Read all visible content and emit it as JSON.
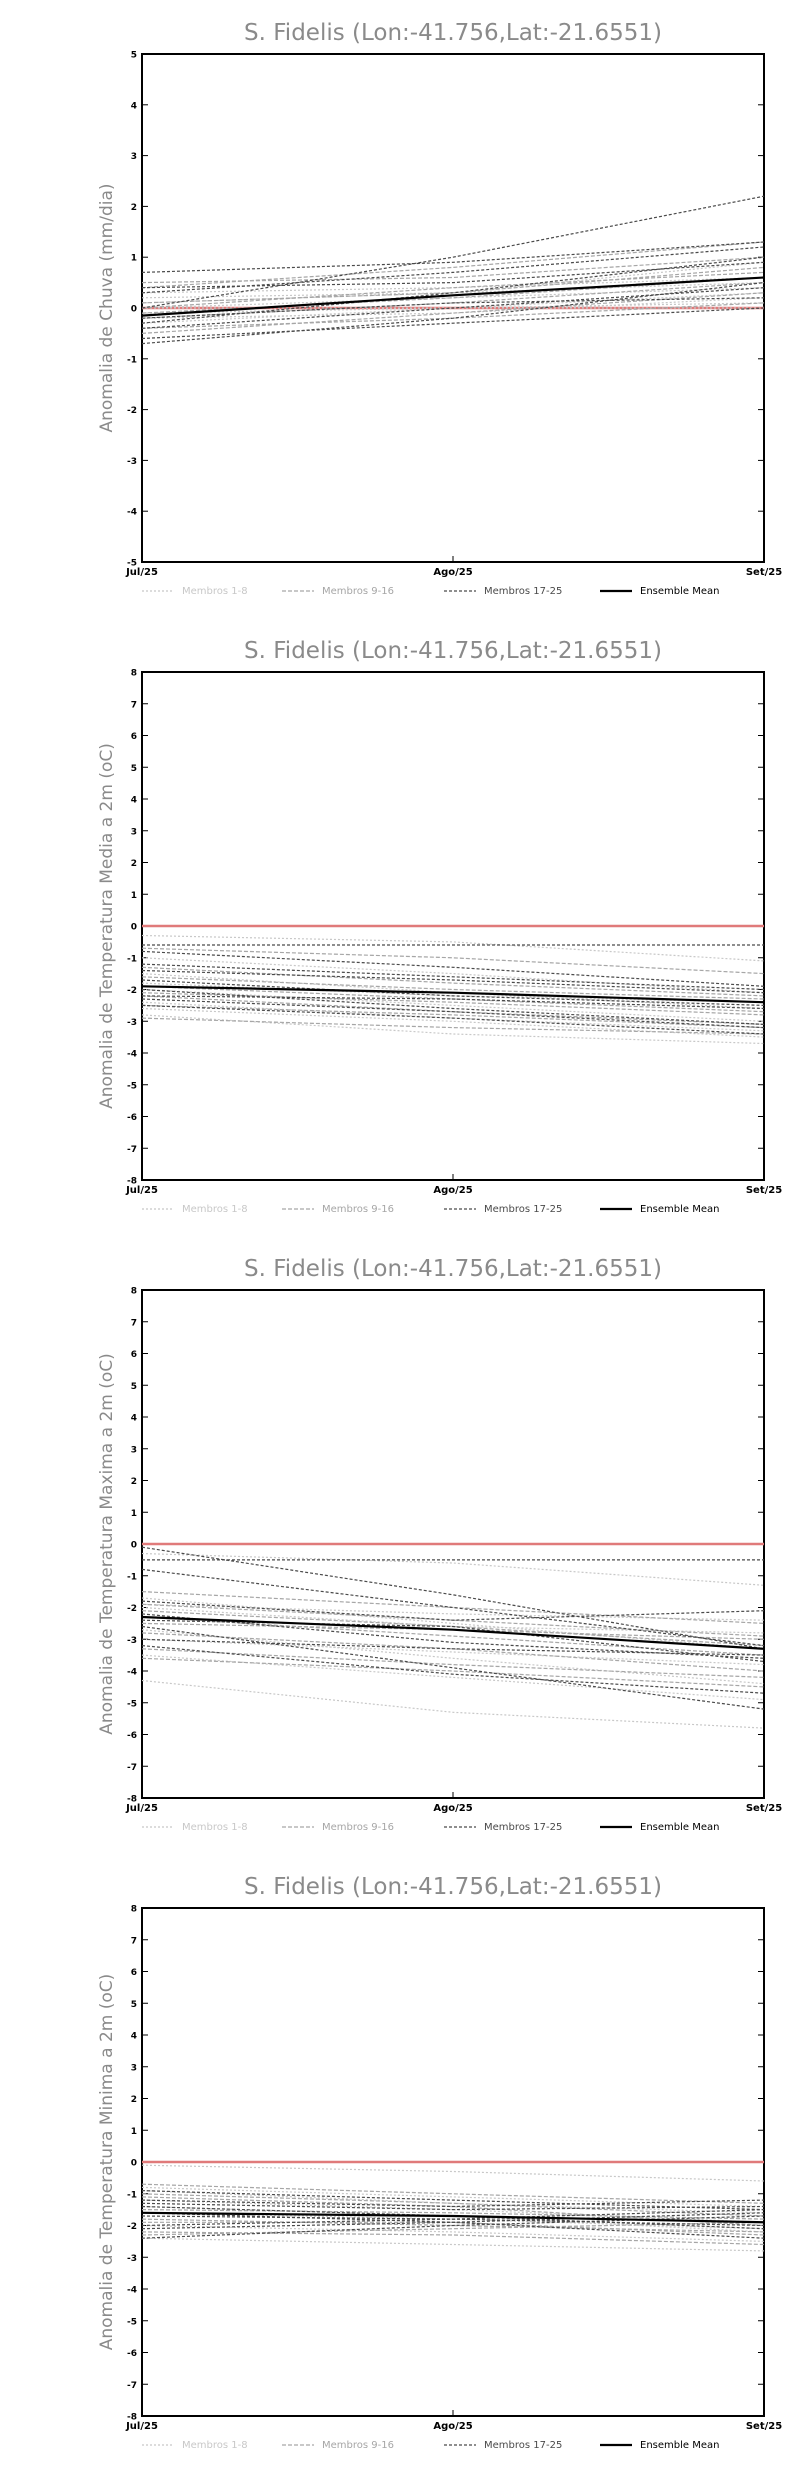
{
  "colors": {
    "members_1_8": "#c8c8c8",
    "members_9_16": "#a6a6a6",
    "members_17_25": "#4a4a4a",
    "ensemble_mean": "#000000",
    "zero_line": "#e07a7a",
    "title_text": "#8a8a8a"
  },
  "legend": [
    {
      "label": "Membros 1-8",
      "style": "members_1_8"
    },
    {
      "label": "Membros 9-16",
      "style": "members_9_16"
    },
    {
      "label": "Membros 17-25",
      "style": "members_17_25"
    },
    {
      "label": "Ensemble Mean",
      "style": "ensemble_mean"
    }
  ],
  "chart_data": [
    {
      "type": "line",
      "title": "S. Fidelis (Lon:-41.756,Lat:-21.6551)",
      "ylabel": "Anomalia de Chuva (mm/dia)",
      "xlabel": "",
      "categories": [
        "Jul/25",
        "Ago/25",
        "Set/25"
      ],
      "ylim": [
        -5,
        5
      ],
      "yticks": [
        -5,
        -4,
        -3,
        -2,
        -1,
        0,
        1,
        2,
        3,
        4,
        5
      ],
      "zero_line": 0,
      "grid": false,
      "series": [
        {
          "group": "members_1_8",
          "values": [
            0.1,
            0.3,
            0.5
          ]
        },
        {
          "group": "members_1_8",
          "values": [
            0.0,
            0.0,
            0.1
          ]
        },
        {
          "group": "members_1_8",
          "values": [
            -0.2,
            -0.1,
            0.2
          ]
        },
        {
          "group": "members_1_8",
          "values": [
            0.3,
            0.4,
            0.6
          ]
        },
        {
          "group": "members_1_8",
          "values": [
            -0.1,
            0.0,
            0.0
          ]
        },
        {
          "group": "members_1_8",
          "values": [
            0.2,
            0.3,
            0.9
          ]
        },
        {
          "group": "members_1_8",
          "values": [
            -0.3,
            0.0,
            0.3
          ]
        },
        {
          "group": "members_1_8",
          "values": [
            0.0,
            0.2,
            0.4
          ]
        },
        {
          "group": "members_9_16",
          "values": [
            -0.4,
            -0.2,
            0.1
          ]
        },
        {
          "group": "members_9_16",
          "values": [
            0.5,
            0.6,
            1.0
          ]
        },
        {
          "group": "members_9_16",
          "values": [
            -0.2,
            0.1,
            0.5
          ]
        },
        {
          "group": "members_9_16",
          "values": [
            0.1,
            0.3,
            0.8
          ]
        },
        {
          "group": "members_9_16",
          "values": [
            -0.1,
            0.2,
            0.6
          ]
        },
        {
          "group": "members_9_16",
          "values": [
            0.4,
            0.8,
            1.3
          ]
        },
        {
          "group": "members_9_16",
          "values": [
            -0.5,
            -0.1,
            0.3
          ]
        },
        {
          "group": "members_9_16",
          "values": [
            0.0,
            0.4,
            0.7
          ]
        },
        {
          "group": "members_17_25",
          "values": [
            0.7,
            0.9,
            1.3
          ]
        },
        {
          "group": "members_17_25",
          "values": [
            -0.6,
            -0.3,
            0.0
          ]
        },
        {
          "group": "members_17_25",
          "values": [
            0.0,
            1.0,
            2.2
          ]
        },
        {
          "group": "members_17_25",
          "values": [
            -0.3,
            0.3,
            1.0
          ]
        },
        {
          "group": "members_17_25",
          "values": [
            0.3,
            0.7,
            1.2
          ]
        },
        {
          "group": "members_17_25",
          "values": [
            -0.4,
            0.0,
            0.4
          ]
        },
        {
          "group": "members_17_25",
          "values": [
            -0.2,
            0.1,
            0.2
          ]
        },
        {
          "group": "members_17_25",
          "values": [
            0.4,
            0.5,
            0.9
          ]
        },
        {
          "group": "members_17_25",
          "values": [
            -0.7,
            -0.2,
            0.5
          ]
        },
        {
          "group": "ensemble_mean",
          "name": "Ensemble Mean",
          "values": [
            -0.15,
            0.25,
            0.6
          ]
        }
      ]
    },
    {
      "type": "line",
      "title": "S. Fidelis (Lon:-41.756,Lat:-21.6551)",
      "ylabel": "Anomalia de Temperatura Media a 2m (oC)",
      "xlabel": "",
      "categories": [
        "Jul/25",
        "Ago/25",
        "Set/25"
      ],
      "ylim": [
        -8,
        8
      ],
      "yticks": [
        -8,
        -7,
        -6,
        -5,
        -4,
        -3,
        -2,
        -1,
        0,
        1,
        2,
        3,
        4,
        5,
        6,
        7,
        8
      ],
      "zero_line": 0,
      "grid": false,
      "series": [
        {
          "group": "members_1_8",
          "values": [
            -0.3,
            -0.5,
            -1.1
          ]
        },
        {
          "group": "members_1_8",
          "values": [
            -2.8,
            -3.4,
            -3.7
          ]
        },
        {
          "group": "members_1_8",
          "values": [
            -1.5,
            -2.1,
            -2.6
          ]
        },
        {
          "group": "members_1_8",
          "values": [
            -2.0,
            -2.5,
            -3.0
          ]
        },
        {
          "group": "members_1_8",
          "values": [
            -1.0,
            -1.5,
            -2.1
          ]
        },
        {
          "group": "members_1_8",
          "values": [
            -2.4,
            -2.9,
            -3.3
          ]
        },
        {
          "group": "members_1_8",
          "values": [
            -1.8,
            -2.2,
            -2.4
          ]
        },
        {
          "group": "members_1_8",
          "values": [
            -2.6,
            -3.0,
            -3.5
          ]
        },
        {
          "group": "members_9_16",
          "values": [
            -1.3,
            -1.8,
            -2.2
          ]
        },
        {
          "group": "members_9_16",
          "values": [
            -2.2,
            -2.7,
            -3.1
          ]
        },
        {
          "group": "members_9_16",
          "values": [
            -0.7,
            -1.0,
            -1.5
          ]
        },
        {
          "group": "members_9_16",
          "values": [
            -2.9,
            -3.2,
            -3.4
          ]
        },
        {
          "group": "members_9_16",
          "values": [
            -1.6,
            -2.0,
            -2.3
          ]
        },
        {
          "group": "members_9_16",
          "values": [
            -2.1,
            -2.4,
            -2.8
          ]
        },
        {
          "group": "members_9_16",
          "values": [
            -1.9,
            -2.3,
            -2.7
          ]
        },
        {
          "group": "members_9_16",
          "values": [
            -2.5,
            -2.8,
            -3.2
          ]
        },
        {
          "group": "members_17_25",
          "values": [
            -0.8,
            -1.3,
            -1.9
          ]
        },
        {
          "group": "members_17_25",
          "values": [
            -2.3,
            -2.7,
            -3.2
          ]
        },
        {
          "group": "members_17_25",
          "values": [
            -0.6,
            -0.6,
            -0.6
          ]
        },
        {
          "group": "members_17_25",
          "values": [
            -1.2,
            -1.6,
            -2.0
          ]
        },
        {
          "group": "members_17_25",
          "values": [
            -2.5,
            -2.9,
            -3.4
          ]
        },
        {
          "group": "members_17_25",
          "values": [
            -1.7,
            -2.2,
            -2.5
          ]
        },
        {
          "group": "members_17_25",
          "values": [
            -2.0,
            -2.6,
            -3.1
          ]
        },
        {
          "group": "members_17_25",
          "values": [
            -1.4,
            -1.7,
            -2.1
          ]
        },
        {
          "group": "members_17_25",
          "values": [
            -2.2,
            -2.3,
            -2.6
          ]
        },
        {
          "group": "ensemble_mean",
          "name": "Ensemble Mean",
          "values": [
            -1.9,
            -2.1,
            -2.4
          ]
        }
      ]
    },
    {
      "type": "line",
      "title": "S. Fidelis (Lon:-41.756,Lat:-21.6551)",
      "ylabel": "Anomalia de Temperatura Maxima a 2m (oC)",
      "xlabel": "",
      "categories": [
        "Jul/25",
        "Ago/25",
        "Set/25"
      ],
      "ylim": [
        -8,
        8
      ],
      "yticks": [
        -8,
        -7,
        -6,
        -5,
        -4,
        -3,
        -2,
        -1,
        0,
        1,
        2,
        3,
        4,
        5,
        6,
        7,
        8
      ],
      "zero_line": 0,
      "grid": false,
      "series": [
        {
          "group": "members_1_8",
          "values": [
            -0.3,
            -0.6,
            -1.3
          ]
        },
        {
          "group": "members_1_8",
          "values": [
            -4.3,
            -5.3,
            -5.8
          ]
        },
        {
          "group": "members_1_8",
          "values": [
            -2.7,
            -3.6,
            -4.4
          ]
        },
        {
          "group": "members_1_8",
          "values": [
            -1.7,
            -2.5,
            -3.3
          ]
        },
        {
          "group": "members_1_8",
          "values": [
            -3.5,
            -4.2,
            -4.9
          ]
        },
        {
          "group": "members_1_8",
          "values": [
            -2.0,
            -2.6,
            -2.8
          ]
        },
        {
          "group": "members_1_8",
          "values": [
            -3.0,
            -3.4,
            -3.8
          ]
        },
        {
          "group": "members_1_8",
          "values": [
            -1.9,
            -2.2,
            -2.4
          ]
        },
        {
          "group": "members_9_16",
          "values": [
            -2.3,
            -2.9,
            -3.5
          ]
        },
        {
          "group": "members_9_16",
          "values": [
            -3.3,
            -3.8,
            -4.2
          ]
        },
        {
          "group": "members_9_16",
          "values": [
            -1.5,
            -2.0,
            -2.5
          ]
        },
        {
          "group": "members_9_16",
          "values": [
            -2.8,
            -3.3,
            -4.0
          ]
        },
        {
          "group": "members_9_16",
          "values": [
            -1.9,
            -2.4,
            -2.9
          ]
        },
        {
          "group": "members_9_16",
          "values": [
            -3.6,
            -4.0,
            -4.5
          ]
        },
        {
          "group": "members_9_16",
          "values": [
            -2.5,
            -2.7,
            -3.0
          ]
        },
        {
          "group": "members_9_16",
          "values": [
            -2.1,
            -2.6,
            -3.2
          ]
        },
        {
          "group": "members_17_25",
          "values": [
            -0.1,
            -1.6,
            -3.3
          ]
        },
        {
          "group": "members_17_25",
          "values": [
            -0.5,
            -0.5,
            -0.5
          ]
        },
        {
          "group": "members_17_25",
          "values": [
            -2.6,
            -3.9,
            -5.2
          ]
        },
        {
          "group": "members_17_25",
          "values": [
            -1.8,
            -2.4,
            -2.1
          ]
        },
        {
          "group": "members_17_25",
          "values": [
            -2.2,
            -3.1,
            -3.6
          ]
        },
        {
          "group": "members_17_25",
          "values": [
            -3.0,
            -3.3,
            -3.5
          ]
        },
        {
          "group": "members_17_25",
          "values": [
            -0.8,
            -2.0,
            -3.2
          ]
        },
        {
          "group": "members_17_25",
          "values": [
            -2.4,
            -2.6,
            -3.7
          ]
        },
        {
          "group": "members_17_25",
          "values": [
            -3.2,
            -4.1,
            -4.7
          ]
        },
        {
          "group": "ensemble_mean",
          "name": "Ensemble Mean",
          "values": [
            -2.3,
            -2.7,
            -3.3
          ]
        }
      ]
    },
    {
      "type": "line",
      "title": "S. Fidelis (Lon:-41.756,Lat:-21.6551)",
      "ylabel": "Anomalia de Temperatura Minima a 2m (oC)",
      "xlabel": "",
      "categories": [
        "Jul/25",
        "Ago/25",
        "Set/25"
      ],
      "ylim": [
        -8,
        8
      ],
      "yticks": [
        -8,
        -7,
        -6,
        -5,
        -4,
        -3,
        -2,
        -1,
        0,
        1,
        2,
        3,
        4,
        5,
        6,
        7,
        8
      ],
      "zero_line": 0,
      "grid": false,
      "series": [
        {
          "group": "members_1_8",
          "values": [
            -0.1,
            -0.3,
            -0.6
          ]
        },
        {
          "group": "members_1_8",
          "values": [
            -2.4,
            -2.6,
            -2.8
          ]
        },
        {
          "group": "members_1_8",
          "values": [
            -1.2,
            -1.5,
            -1.9
          ]
        },
        {
          "group": "members_1_8",
          "values": [
            -1.6,
            -1.8,
            -2.1
          ]
        },
        {
          "group": "members_1_8",
          "values": [
            -0.8,
            -1.1,
            -1.4
          ]
        },
        {
          "group": "members_1_8",
          "values": [
            -2.0,
            -2.2,
            -2.5
          ]
        },
        {
          "group": "members_1_8",
          "values": [
            -1.4,
            -1.7,
            -2.2
          ]
        },
        {
          "group": "members_1_8",
          "values": [
            -0.9,
            -1.3,
            -1.6
          ]
        },
        {
          "group": "members_9_16",
          "values": [
            -1.0,
            -1.3,
            -1.7
          ]
        },
        {
          "group": "members_9_16",
          "values": [
            -2.2,
            -2.3,
            -2.6
          ]
        },
        {
          "group": "members_9_16",
          "values": [
            -1.8,
            -2.0,
            -2.2
          ]
        },
        {
          "group": "members_9_16",
          "values": [
            -0.7,
            -1.0,
            -1.3
          ]
        },
        {
          "group": "members_9_16",
          "values": [
            -1.5,
            -1.6,
            -1.8
          ]
        },
        {
          "group": "members_9_16",
          "values": [
            -2.3,
            -2.1,
            -1.9
          ]
        },
        {
          "group": "members_9_16",
          "values": [
            -1.1,
            -1.4,
            -2.0
          ]
        },
        {
          "group": "members_9_16",
          "values": [
            -1.9,
            -1.9,
            -2.3
          ]
        },
        {
          "group": "members_17_25",
          "values": [
            -1.3,
            -1.5,
            -1.4
          ]
        },
        {
          "group": "members_17_25",
          "values": [
            -2.4,
            -2.0,
            -1.7
          ]
        },
        {
          "group": "members_17_25",
          "values": [
            -0.9,
            -1.2,
            -1.5
          ]
        },
        {
          "group": "members_17_25",
          "values": [
            -1.7,
            -1.8,
            -2.0
          ]
        },
        {
          "group": "members_17_25",
          "values": [
            -2.1,
            -1.9,
            -1.6
          ]
        },
        {
          "group": "members_17_25",
          "values": [
            -1.2,
            -1.4,
            -1.2
          ]
        },
        {
          "group": "members_17_25",
          "values": [
            -1.6,
            -1.9,
            -2.4
          ]
        },
        {
          "group": "members_17_25",
          "values": [
            -2.0,
            -1.8,
            -1.5
          ]
        },
        {
          "group": "members_17_25",
          "values": [
            -1.4,
            -1.7,
            -2.1
          ]
        },
        {
          "group": "ensemble_mean",
          "name": "Ensemble Mean",
          "values": [
            -1.6,
            -1.7,
            -1.9
          ]
        }
      ]
    }
  ]
}
